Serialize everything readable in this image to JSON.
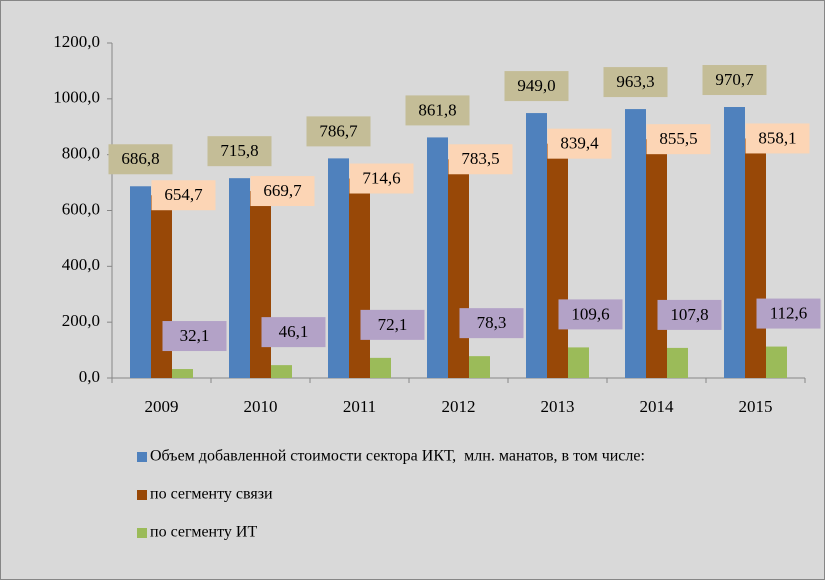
{
  "chart_data": {
    "type": "bar",
    "categories": [
      "2009",
      "2010",
      "2011",
      "2012",
      "2013",
      "2014",
      "2015"
    ],
    "series": [
      {
        "name": "Объем добавленной стоимости сектора ИКТ,  млн. манатов, в том числе:",
        "color": "#4f81bd",
        "label_background": "#c4bd97",
        "values": [
          686.8,
          715.8,
          786.7,
          861.8,
          949.0,
          963.3,
          970.7
        ],
        "value_labels": [
          "686,8",
          "715,8",
          "786,7",
          "861,8",
          "949,0",
          "963,3",
          "970,7"
        ]
      },
      {
        "name": "по сегменту связи",
        "color": "#984807",
        "label_background": "#fcd5b5",
        "values": [
          654.7,
          669.7,
          714.6,
          783.5,
          839.4,
          855.5,
          858.1
        ],
        "value_labels": [
          "654,7",
          "669,7",
          "714,6",
          "783,5",
          "839,4",
          "855,5",
          "858,1"
        ]
      },
      {
        "name": "по сегменту ИТ",
        "color": "#9bbb59",
        "label_background": "#b3a2c7",
        "values": [
          32.1,
          46.1,
          72.1,
          78.3,
          109.6,
          107.8,
          112.6
        ],
        "value_labels": [
          "32,1",
          "46,1",
          "72,1",
          "78,3",
          "109,6",
          "107,8",
          "112,6"
        ]
      }
    ],
    "ylim": [
      0,
      1200
    ],
    "yticks": [
      {
        "value": 0,
        "label": "0,0"
      },
      {
        "value": 200,
        "label": "200,0"
      },
      {
        "value": 400,
        "label": "400,0"
      },
      {
        "value": 600,
        "label": "600,0"
      },
      {
        "value": 800,
        "label": "800,0"
      },
      {
        "value": 1000,
        "label": "1000,0"
      },
      {
        "value": 1200,
        "label": "1200,0"
      }
    ],
    "grid": false
  }
}
